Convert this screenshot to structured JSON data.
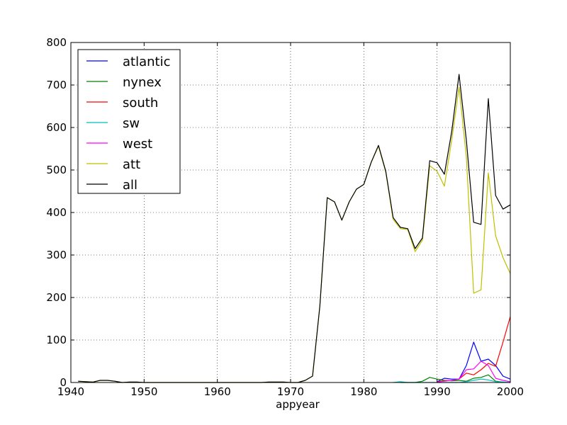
{
  "chart_data": {
    "type": "line",
    "title": "",
    "xlabel": "appyear",
    "ylabel": "",
    "xlim": [
      1940,
      2000
    ],
    "ylim": [
      0,
      800
    ],
    "xticks": [
      "1940",
      "1950",
      "1960",
      "1970",
      "1980",
      "1990",
      "2000"
    ],
    "yticks": [
      "0",
      "100",
      "200",
      "300",
      "400",
      "500",
      "600",
      "700",
      "800"
    ],
    "grid": true,
    "legend_position": "upper-left",
    "series": [
      {
        "name": "atlantic",
        "color": "#0000ff",
        "points": [
          [
            1990,
            2
          ],
          [
            1991,
            10
          ],
          [
            1992,
            8
          ],
          [
            1993,
            8
          ],
          [
            1994,
            40
          ],
          [
            1995,
            95
          ],
          [
            1996,
            50
          ],
          [
            1997,
            55
          ],
          [
            1998,
            40
          ],
          [
            1999,
            15
          ],
          [
            2000,
            8
          ]
        ]
      },
      {
        "name": "nynex",
        "color": "#008000",
        "points": [
          [
            1985,
            0
          ],
          [
            1986,
            0
          ],
          [
            1987,
            0
          ],
          [
            1988,
            3
          ],
          [
            1989,
            12
          ],
          [
            1990,
            8
          ],
          [
            1991,
            5
          ],
          [
            1992,
            4
          ],
          [
            1993,
            5
          ],
          [
            1994,
            3
          ],
          [
            1995,
            10
          ],
          [
            1996,
            12
          ],
          [
            1997,
            18
          ],
          [
            1998,
            3
          ],
          [
            1999,
            1
          ],
          [
            2000,
            0
          ]
        ]
      },
      {
        "name": "south",
        "color": "#ff0000",
        "points": [
          [
            1990,
            2
          ],
          [
            1991,
            4
          ],
          [
            1992,
            5
          ],
          [
            1993,
            8
          ],
          [
            1994,
            22
          ],
          [
            1995,
            18
          ],
          [
            1996,
            30
          ],
          [
            1997,
            45
          ],
          [
            1998,
            38
          ],
          [
            1999,
            95
          ],
          [
            2000,
            155
          ]
        ]
      },
      {
        "name": "sw",
        "color": "#00bfbf",
        "points": [
          [
            1984,
            0
          ],
          [
            1985,
            2
          ],
          [
            1986,
            0
          ],
          [
            1987,
            0
          ],
          [
            1993,
            0
          ],
          [
            1994,
            2
          ],
          [
            1995,
            5
          ],
          [
            1996,
            8
          ],
          [
            1997,
            6
          ],
          [
            1998,
            2
          ],
          [
            1999,
            1
          ],
          [
            2000,
            0
          ]
        ]
      },
      {
        "name": "west",
        "color": "#ff00ff",
        "points": [
          [
            1990,
            1
          ],
          [
            1991,
            3
          ],
          [
            1992,
            5
          ],
          [
            1993,
            8
          ],
          [
            1994,
            30
          ],
          [
            1995,
            32
          ],
          [
            1996,
            50
          ],
          [
            1997,
            40
          ],
          [
            1998,
            10
          ],
          [
            1999,
            5
          ],
          [
            2000,
            2
          ]
        ]
      },
      {
        "name": "att",
        "color": "#bfbf00",
        "points": [
          [
            1941,
            3
          ],
          [
            1942,
            2
          ],
          [
            1943,
            1
          ],
          [
            1944,
            5
          ],
          [
            1945,
            5
          ],
          [
            1946,
            3
          ],
          [
            1947,
            0
          ],
          [
            1948,
            1
          ],
          [
            1949,
            1
          ],
          [
            1950,
            0
          ],
          [
            1955,
            0
          ],
          [
            1960,
            0
          ],
          [
            1965,
            0
          ],
          [
            1966,
            0
          ],
          [
            1967,
            1
          ],
          [
            1968,
            1
          ],
          [
            1969,
            1
          ],
          [
            1970,
            0
          ],
          [
            1971,
            0
          ],
          [
            1972,
            5
          ],
          [
            1973,
            15
          ],
          [
            1974,
            180
          ],
          [
            1975,
            435
          ],
          [
            1976,
            425
          ],
          [
            1977,
            382
          ],
          [
            1978,
            425
          ],
          [
            1979,
            455
          ],
          [
            1980,
            466
          ],
          [
            1981,
            518
          ],
          [
            1982,
            556
          ],
          [
            1983,
            495
          ],
          [
            1984,
            384
          ],
          [
            1985,
            362
          ],
          [
            1986,
            360
          ],
          [
            1987,
            308
          ],
          [
            1988,
            335
          ],
          [
            1989,
            510
          ],
          [
            1990,
            497
          ],
          [
            1991,
            462
          ],
          [
            1992,
            570
          ],
          [
            1993,
            695
          ],
          [
            1994,
            530
          ],
          [
            1995,
            210
          ],
          [
            1996,
            218
          ],
          [
            1997,
            493
          ],
          [
            1998,
            345
          ],
          [
            1999,
            294
          ],
          [
            2000,
            256
          ]
        ]
      },
      {
        "name": "all",
        "color": "#000000",
        "points": [
          [
            1941,
            3
          ],
          [
            1942,
            2
          ],
          [
            1943,
            1
          ],
          [
            1944,
            5
          ],
          [
            1945,
            5
          ],
          [
            1946,
            3
          ],
          [
            1947,
            0
          ],
          [
            1948,
            1
          ],
          [
            1949,
            1
          ],
          [
            1950,
            0
          ],
          [
            1955,
            0
          ],
          [
            1960,
            0
          ],
          [
            1965,
            0
          ],
          [
            1966,
            0
          ],
          [
            1967,
            1
          ],
          [
            1968,
            1
          ],
          [
            1969,
            1
          ],
          [
            1970,
            0
          ],
          [
            1971,
            0
          ],
          [
            1972,
            5
          ],
          [
            1973,
            15
          ],
          [
            1974,
            180
          ],
          [
            1975,
            435
          ],
          [
            1976,
            425
          ],
          [
            1977,
            382
          ],
          [
            1978,
            425
          ],
          [
            1979,
            455
          ],
          [
            1980,
            466
          ],
          [
            1981,
            518
          ],
          [
            1982,
            558
          ],
          [
            1983,
            497
          ],
          [
            1984,
            388
          ],
          [
            1985,
            365
          ],
          [
            1986,
            362
          ],
          [
            1987,
            315
          ],
          [
            1988,
            340
          ],
          [
            1989,
            522
          ],
          [
            1990,
            517
          ],
          [
            1991,
            490
          ],
          [
            1992,
            590
          ],
          [
            1993,
            725
          ],
          [
            1994,
            570
          ],
          [
            1995,
            377
          ],
          [
            1996,
            372
          ],
          [
            1997,
            668
          ],
          [
            1998,
            440
          ],
          [
            1999,
            408
          ],
          [
            2000,
            418
          ]
        ]
      }
    ]
  }
}
